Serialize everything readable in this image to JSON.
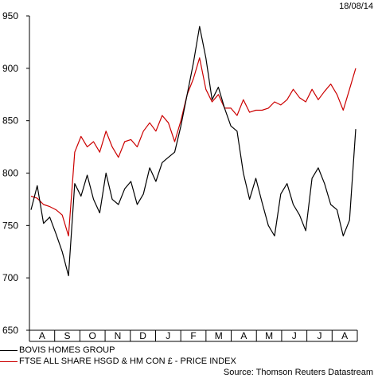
{
  "date_label": "18/08/14",
  "source": "Source: Thomson Reuters Datastream",
  "colors": {
    "series_1": "#000000",
    "series_2": "#cc0000"
  },
  "chart_data": {
    "type": "line",
    "title": "",
    "xlabel": "",
    "ylabel": "",
    "ylim": [
      650,
      950
    ],
    "yticks": [
      650,
      700,
      750,
      800,
      850,
      900,
      950
    ],
    "grid": false,
    "legend_position": "bottom-left",
    "month_labels": [
      "A",
      "S",
      "O",
      "N",
      "D",
      "J",
      "F",
      "M",
      "A",
      "M",
      "J",
      "J",
      "A"
    ],
    "x": [
      "2013-08-19",
      "2013-08-26",
      "2013-09-02",
      "2013-09-09",
      "2013-09-16",
      "2013-09-23",
      "2013-09-30",
      "2013-10-07",
      "2013-10-14",
      "2013-10-21",
      "2013-10-28",
      "2013-11-04",
      "2013-11-11",
      "2013-11-18",
      "2013-11-25",
      "2013-12-02",
      "2013-12-09",
      "2013-12-16",
      "2013-12-23",
      "2013-12-30",
      "2014-01-06",
      "2014-01-13",
      "2014-01-20",
      "2014-01-27",
      "2014-02-03",
      "2014-02-10",
      "2014-02-17",
      "2014-02-24",
      "2014-03-03",
      "2014-03-10",
      "2014-03-17",
      "2014-03-24",
      "2014-03-31",
      "2014-04-07",
      "2014-04-14",
      "2014-04-21",
      "2014-04-28",
      "2014-05-05",
      "2014-05-12",
      "2014-05-19",
      "2014-05-26",
      "2014-06-02",
      "2014-06-09",
      "2014-06-16",
      "2014-06-23",
      "2014-06-30",
      "2014-07-07",
      "2014-07-14",
      "2014-07-21",
      "2014-07-28",
      "2014-08-04",
      "2014-08-11",
      "2014-08-18"
    ],
    "series": [
      {
        "name": "BOVIS HOMES GROUP",
        "values": [
          765,
          788,
          752,
          758,
          742,
          725,
          702,
          790,
          778,
          798,
          775,
          762,
          800,
          775,
          770,
          785,
          792,
          770,
          780,
          805,
          792,
          810,
          815,
          820,
          845,
          875,
          905,
          940,
          910,
          870,
          882,
          862,
          845,
          840,
          800,
          775,
          795,
          772,
          750,
          740,
          780,
          790,
          770,
          760,
          745,
          795,
          805,
          790,
          770,
          765,
          740,
          755,
          842
        ]
      },
      {
        "name": "FTSE ALL SHARE HSGD & HM CON £ - PRICE INDEX",
        "values": [
          778,
          776,
          770,
          768,
          765,
          760,
          740,
          820,
          835,
          825,
          830,
          820,
          840,
          825,
          815,
          830,
          832,
          825,
          840,
          848,
          840,
          855,
          848,
          830,
          850,
          875,
          890,
          910,
          880,
          868,
          875,
          862,
          862,
          855,
          870,
          858,
          860,
          860,
          862,
          868,
          865,
          870,
          880,
          872,
          868,
          880,
          870,
          878,
          885,
          875,
          860,
          880,
          900
        ]
      }
    ]
  }
}
